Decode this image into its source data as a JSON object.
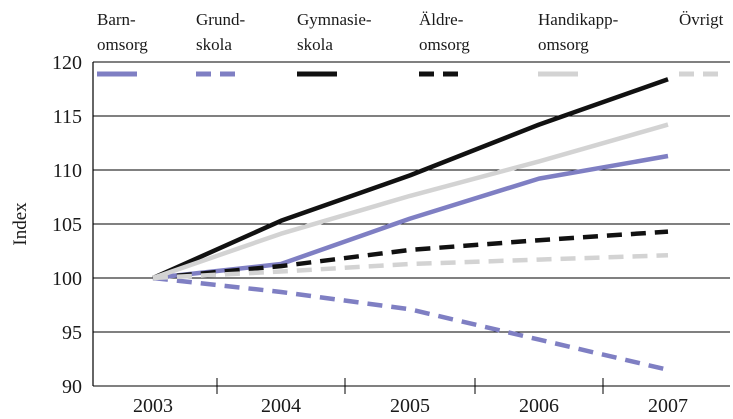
{
  "chart_data": {
    "type": "line",
    "ylabel": "Index",
    "xlabel": "",
    "x": [
      "2003",
      "2004",
      "2005",
      "2006",
      "2007"
    ],
    "ylim": [
      90,
      120
    ],
    "yticks": [
      90,
      95,
      100,
      105,
      110,
      115,
      120
    ],
    "grid": "horizontal",
    "legend_position": "top",
    "series": [
      {
        "name_lines": [
          "Barn-",
          "omsorg"
        ],
        "values": [
          100,
          101.3,
          105.5,
          109.2,
          111.3
        ],
        "color": "#7f7fc3",
        "style": "solid"
      },
      {
        "name_lines": [
          "Grund-",
          "skola"
        ],
        "values": [
          100,
          98.7,
          97.1,
          94.3,
          91.5
        ],
        "color": "#7f7fc3",
        "style": "dashed"
      },
      {
        "name_lines": [
          "Gymnasie-",
          "skola"
        ],
        "values": [
          100,
          105.3,
          109.5,
          114.2,
          118.4
        ],
        "color": "#111111",
        "style": "solid"
      },
      {
        "name_lines": [
          "Äldre-",
          "omsorg"
        ],
        "values": [
          100,
          101.1,
          102.6,
          103.5,
          104.3
        ],
        "color": "#111111",
        "style": "dashed"
      },
      {
        "name_lines": [
          "Handikapp-",
          "omsorg"
        ],
        "values": [
          100,
          104.1,
          107.6,
          110.8,
          114.2
        ],
        "color": "#d3d3d3",
        "style": "solid"
      },
      {
        "name_lines": [
          "Övrigt"
        ],
        "values": [
          100,
          100.6,
          101.3,
          101.7,
          102.1
        ],
        "color": "#d3d3d3",
        "style": "dashed"
      }
    ]
  }
}
